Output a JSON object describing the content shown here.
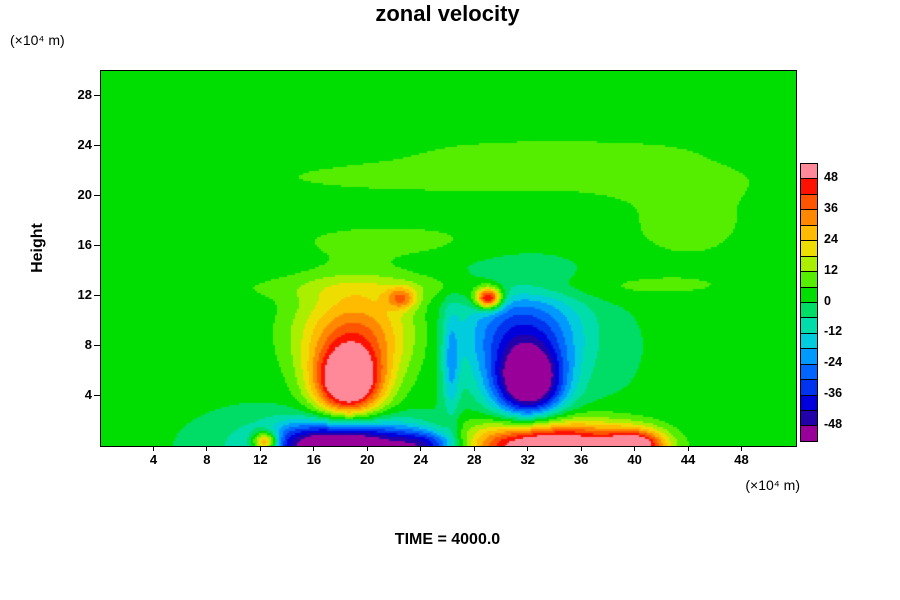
{
  "title": "zonal velocity",
  "time_label": "TIME = 4000.0",
  "axes": {
    "y_axis_label": "Height",
    "y_unit": "(×10⁴ m)",
    "x_unit": "(×10⁴ m)",
    "x_ticks": [
      "4",
      "8",
      "12",
      "16",
      "20",
      "24",
      "28",
      "32",
      "36",
      "40",
      "44",
      "48"
    ],
    "y_ticks": [
      "4",
      "8",
      "12",
      "16",
      "20",
      "24",
      "28"
    ],
    "x_range": [
      0,
      52
    ],
    "y_range": [
      0,
      30
    ]
  },
  "colorbar": {
    "labels": [
      "48",
      "36",
      "24",
      "12",
      "0",
      "-12",
      "-24",
      "-36",
      "-48"
    ],
    "min": -54,
    "max": 54,
    "interval": 6,
    "colors_high_to_low": [
      "#ff8899",
      "#ff1100",
      "#ff5500",
      "#ff8800",
      "#ffbb00",
      "#eedd00",
      "#aaee00",
      "#55ee00",
      "#00dd00",
      "#00dd66",
      "#00ddaa",
      "#00ccdd",
      "#0099ff",
      "#0066ff",
      "#0033ee",
      "#0000dd",
      "#2200aa",
      "#990099"
    ]
  },
  "chart_data": {
    "type": "heatmap",
    "title": "zonal velocity",
    "xlabel": "(×10⁴ m)",
    "ylabel": "Height (×10⁴ m)",
    "time": 4000.0,
    "x_range": [
      0,
      52
    ],
    "y_range": [
      0,
      30
    ],
    "value_range": [
      -54,
      54
    ],
    "contour_interval": 6,
    "legend_position": "right",
    "baseline": 0.5,
    "features": [
      {
        "name": "updraft-plume-core",
        "amp": 60,
        "x0": 18.5,
        "y0": 5.0,
        "sx": 1.8,
        "sy": 2.0
      },
      {
        "name": "updraft-plume-upper",
        "amp": 34,
        "x0": 19.0,
        "y0": 9.0,
        "sx": 3.2,
        "sy": 2.8
      },
      {
        "name": "downdraft-plume-core",
        "amp": -60,
        "x0": 32.0,
        "y0": 5.0,
        "sx": 1.8,
        "sy": 2.0
      },
      {
        "name": "downdraft-plume-upper",
        "amp": -34,
        "x0": 31.5,
        "y0": 9.0,
        "sx": 3.2,
        "sy": 2.8
      },
      {
        "name": "surface-negative-strip",
        "amp": -70,
        "x0": 18.0,
        "y0": 0.0,
        "sx": 4.0,
        "sy": 1.4
      },
      {
        "name": "surface-negative-strip-east",
        "amp": -32,
        "x0": 24.5,
        "y0": 0.0,
        "sx": 1.8,
        "sy": 0.9
      },
      {
        "name": "surface-positive-strip",
        "amp": 65,
        "x0": 33.5,
        "y0": 0.0,
        "sx": 4.5,
        "sy": 1.4
      },
      {
        "name": "surface-positive-blob-east",
        "amp": 45,
        "x0": 40.0,
        "y0": 0.0,
        "sx": 1.5,
        "sy": 0.9
      },
      {
        "name": "surface-positive-spot-west",
        "amp": 50,
        "x0": 12.3,
        "y0": 0.3,
        "sx": 0.7,
        "sy": 0.6
      },
      {
        "name": "upper-positive-spot-west",
        "amp": 24,
        "x0": 22.5,
        "y0": 11.8,
        "sx": 0.8,
        "sy": 0.6
      },
      {
        "name": "upper-positive-spot-east",
        "amp": 58,
        "x0": 29.0,
        "y0": 11.8,
        "sx": 0.7,
        "sy": 0.6
      },
      {
        "name": "interface-negative-line",
        "amp": -18,
        "x0": 26.2,
        "y0": 6.5,
        "sx": 0.45,
        "sy": 3.0
      },
      {
        "name": "light-band-y12",
        "amp": 7,
        "x0": 26.0,
        "y0": 12.7,
        "sx": 16.0,
        "sy": 0.8
      },
      {
        "name": "light-band-y16",
        "amp": 7,
        "x0": 22.0,
        "y0": 16.5,
        "sx": 7.0,
        "sy": 1.2
      },
      {
        "name": "light-band-y21",
        "amp": 8,
        "x0": 27.0,
        "y0": 21.5,
        "sx": 14.0,
        "sy": 1.2
      },
      {
        "name": "light-band-y24",
        "amp": 6,
        "x0": 33.0,
        "y0": 23.8,
        "sx": 9.0,
        "sy": 0.9
      },
      {
        "name": "light-patch-east",
        "amp": 7,
        "x0": 44.0,
        "y0": 18.0,
        "sx": 5.0,
        "sy": 3.5
      }
    ]
  }
}
